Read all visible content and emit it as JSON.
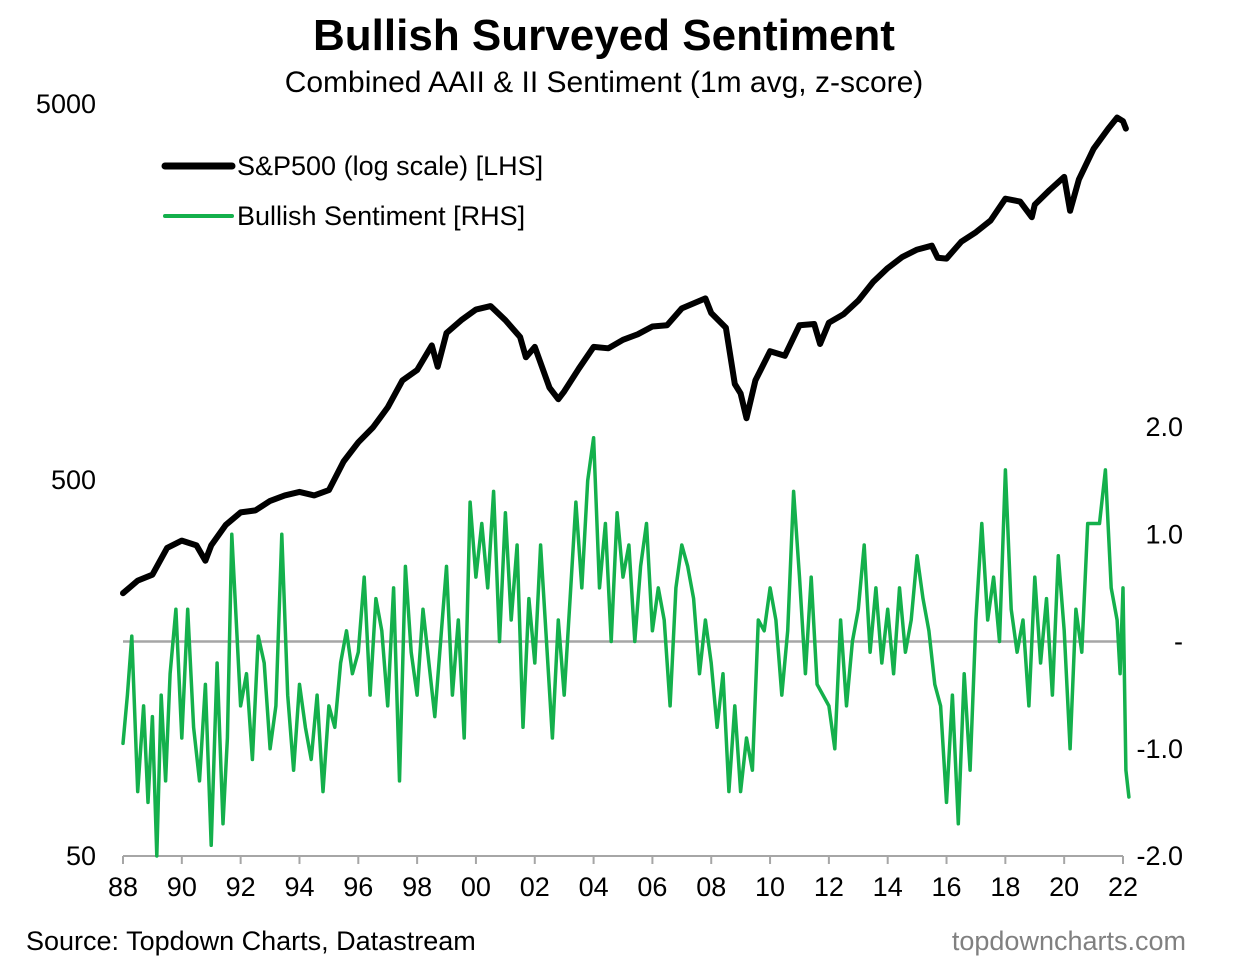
{
  "chart_data": {
    "type": "line",
    "title": "Bullish Surveyed Sentiment",
    "subtitle": "Combined AAII & II Sentiment (1m avg, z-score)",
    "x_ticks": [
      "88",
      "90",
      "92",
      "94",
      "96",
      "98",
      "00",
      "02",
      "04",
      "06",
      "08",
      "10",
      "12",
      "14",
      "16",
      "18",
      "20",
      "22"
    ],
    "x_range": [
      1988,
      2022
    ],
    "left_axis": {
      "scale": "log",
      "range": [
        50,
        5000
      ],
      "ticks": [
        "5000",
        "500",
        "50"
      ],
      "tick_values": [
        5000,
        500,
        50
      ]
    },
    "right_axis": {
      "scale": "linear",
      "range": [
        -2.0,
        2.0
      ],
      "ticks": [
        "2.0",
        "1.0",
        "-",
        "-1.0",
        "-2.0"
      ],
      "tick_values": [
        2,
        1,
        0,
        -1,
        -2
      ]
    },
    "legend": {
      "position": "top-left"
    },
    "series": [
      {
        "name": "S&P500 (log scale) [LHS]",
        "axis": "left",
        "color": "#000000",
        "points": [
          [
            1988.0,
            250
          ],
          [
            1988.5,
            270
          ],
          [
            1989.0,
            280
          ],
          [
            1989.5,
            330
          ],
          [
            1990.0,
            345
          ],
          [
            1990.5,
            335
          ],
          [
            1990.8,
            305
          ],
          [
            1991.0,
            335
          ],
          [
            1991.5,
            380
          ],
          [
            1992.0,
            410
          ],
          [
            1992.5,
            415
          ],
          [
            1993.0,
            440
          ],
          [
            1993.5,
            455
          ],
          [
            1994.0,
            465
          ],
          [
            1994.5,
            455
          ],
          [
            1995.0,
            470
          ],
          [
            1995.5,
            560
          ],
          [
            1996.0,
            630
          ],
          [
            1996.5,
            690
          ],
          [
            1997.0,
            780
          ],
          [
            1997.5,
            920
          ],
          [
            1998.0,
            980
          ],
          [
            1998.5,
            1140
          ],
          [
            1998.7,
            1000
          ],
          [
            1999.0,
            1230
          ],
          [
            1999.5,
            1330
          ],
          [
            2000.0,
            1420
          ],
          [
            2000.5,
            1450
          ],
          [
            2001.0,
            1330
          ],
          [
            2001.5,
            1200
          ],
          [
            2001.7,
            1060
          ],
          [
            2002.0,
            1130
          ],
          [
            2002.5,
            880
          ],
          [
            2002.8,
            820
          ],
          [
            2003.0,
            860
          ],
          [
            2003.5,
            990
          ],
          [
            2004.0,
            1130
          ],
          [
            2004.5,
            1120
          ],
          [
            2005.0,
            1180
          ],
          [
            2005.5,
            1220
          ],
          [
            2006.0,
            1280
          ],
          [
            2006.5,
            1290
          ],
          [
            2007.0,
            1430
          ],
          [
            2007.8,
            1520
          ],
          [
            2008.0,
            1390
          ],
          [
            2008.5,
            1270
          ],
          [
            2008.8,
            900
          ],
          [
            2009.0,
            850
          ],
          [
            2009.2,
            730
          ],
          [
            2009.5,
            920
          ],
          [
            2010.0,
            1100
          ],
          [
            2010.5,
            1070
          ],
          [
            2011.0,
            1290
          ],
          [
            2011.5,
            1300
          ],
          [
            2011.7,
            1150
          ],
          [
            2012.0,
            1310
          ],
          [
            2012.5,
            1380
          ],
          [
            2013.0,
            1500
          ],
          [
            2013.5,
            1680
          ],
          [
            2014.0,
            1830
          ],
          [
            2014.5,
            1960
          ],
          [
            2015.0,
            2050
          ],
          [
            2015.5,
            2100
          ],
          [
            2015.7,
            1950
          ],
          [
            2016.0,
            1940
          ],
          [
            2016.5,
            2150
          ],
          [
            2017.0,
            2280
          ],
          [
            2017.5,
            2450
          ],
          [
            2018.0,
            2800
          ],
          [
            2018.5,
            2750
          ],
          [
            2018.9,
            2500
          ],
          [
            2019.0,
            2700
          ],
          [
            2019.5,
            2950
          ],
          [
            2020.0,
            3200
          ],
          [
            2020.2,
            2600
          ],
          [
            2020.5,
            3150
          ],
          [
            2021.0,
            3800
          ],
          [
            2021.5,
            4300
          ],
          [
            2021.8,
            4600
          ],
          [
            2022.0,
            4500
          ],
          [
            2022.1,
            4300
          ]
        ]
      },
      {
        "name": "Bullish Sentiment [RHS]",
        "axis": "right",
        "color": "#14b04c",
        "points": [
          [
            1988.0,
            -0.95
          ],
          [
            1988.15,
            -0.5
          ],
          [
            1988.3,
            0.05
          ],
          [
            1988.5,
            -1.4
          ],
          [
            1988.7,
            -0.6
          ],
          [
            1988.85,
            -1.5
          ],
          [
            1989.0,
            -0.7
          ],
          [
            1989.15,
            -2.0
          ],
          [
            1989.3,
            -0.5
          ],
          [
            1989.45,
            -1.3
          ],
          [
            1989.6,
            -0.3
          ],
          [
            1989.8,
            0.3
          ],
          [
            1990.0,
            -0.9
          ],
          [
            1990.2,
            0.3
          ],
          [
            1990.4,
            -0.8
          ],
          [
            1990.6,
            -1.3
          ],
          [
            1990.8,
            -0.4
          ],
          [
            1991.0,
            -1.9
          ],
          [
            1991.2,
            -0.2
          ],
          [
            1991.4,
            -1.7
          ],
          [
            1991.55,
            -0.9
          ],
          [
            1991.7,
            1.0
          ],
          [
            1992.0,
            -0.6
          ],
          [
            1992.2,
            -0.3
          ],
          [
            1992.4,
            -1.1
          ],
          [
            1992.6,
            0.05
          ],
          [
            1992.8,
            -0.2
          ],
          [
            1993.0,
            -1.0
          ],
          [
            1993.2,
            -0.6
          ],
          [
            1993.4,
            1.0
          ],
          [
            1993.6,
            -0.5
          ],
          [
            1993.8,
            -1.2
          ],
          [
            1994.0,
            -0.4
          ],
          [
            1994.2,
            -0.8
          ],
          [
            1994.4,
            -1.1
          ],
          [
            1994.6,
            -0.5
          ],
          [
            1994.8,
            -1.4
          ],
          [
            1995.0,
            -0.6
          ],
          [
            1995.2,
            -0.8
          ],
          [
            1995.4,
            -0.2
          ],
          [
            1995.6,
            0.1
          ],
          [
            1995.8,
            -0.3
          ],
          [
            1996.0,
            -0.1
          ],
          [
            1996.2,
            0.6
          ],
          [
            1996.4,
            -0.5
          ],
          [
            1996.6,
            0.4
          ],
          [
            1996.8,
            0.1
          ],
          [
            1997.0,
            -0.6
          ],
          [
            1997.2,
            0.5
          ],
          [
            1997.4,
            -1.3
          ],
          [
            1997.6,
            0.7
          ],
          [
            1997.8,
            -0.1
          ],
          [
            1998.0,
            -0.5
          ],
          [
            1998.2,
            0.3
          ],
          [
            1998.4,
            -0.2
          ],
          [
            1998.6,
            -0.7
          ],
          [
            1998.8,
            0.0
          ],
          [
            1999.0,
            0.7
          ],
          [
            1999.2,
            -0.5
          ],
          [
            1999.4,
            0.2
          ],
          [
            1999.6,
            -0.9
          ],
          [
            1999.8,
            1.3
          ],
          [
            2000.0,
            0.6
          ],
          [
            2000.2,
            1.1
          ],
          [
            2000.4,
            0.5
          ],
          [
            2000.6,
            1.4
          ],
          [
            2000.8,
            0.0
          ],
          [
            2001.0,
            1.2
          ],
          [
            2001.2,
            0.2
          ],
          [
            2001.4,
            0.9
          ],
          [
            2001.6,
            -0.8
          ],
          [
            2001.8,
            0.4
          ],
          [
            2002.0,
            -0.2
          ],
          [
            2002.2,
            0.9
          ],
          [
            2002.4,
            0.0
          ],
          [
            2002.6,
            -0.9
          ],
          [
            2002.8,
            0.2
          ],
          [
            2003.0,
            -0.5
          ],
          [
            2003.2,
            0.4
          ],
          [
            2003.4,
            1.3
          ],
          [
            2003.6,
            0.5
          ],
          [
            2003.8,
            1.5
          ],
          [
            2004.0,
            1.9
          ],
          [
            2004.2,
            0.5
          ],
          [
            2004.4,
            1.1
          ],
          [
            2004.6,
            0.0
          ],
          [
            2004.8,
            1.2
          ],
          [
            2005.0,
            0.6
          ],
          [
            2005.2,
            0.9
          ],
          [
            2005.4,
            0.0
          ],
          [
            2005.6,
            0.7
          ],
          [
            2005.8,
            1.1
          ],
          [
            2006.0,
            0.1
          ],
          [
            2006.2,
            0.5
          ],
          [
            2006.4,
            0.2
          ],
          [
            2006.6,
            -0.6
          ],
          [
            2006.8,
            0.5
          ],
          [
            2007.0,
            0.9
          ],
          [
            2007.2,
            0.7
          ],
          [
            2007.4,
            0.4
          ],
          [
            2007.6,
            -0.3
          ],
          [
            2007.8,
            0.2
          ],
          [
            2008.0,
            -0.2
          ],
          [
            2008.2,
            -0.8
          ],
          [
            2008.4,
            -0.3
          ],
          [
            2008.6,
            -1.4
          ],
          [
            2008.8,
            -0.6
          ],
          [
            2009.0,
            -1.4
          ],
          [
            2009.2,
            -0.9
          ],
          [
            2009.4,
            -1.2
          ],
          [
            2009.6,
            0.2
          ],
          [
            2009.8,
            0.1
          ],
          [
            2010.0,
            0.5
          ],
          [
            2010.2,
            0.2
          ],
          [
            2010.4,
            -0.5
          ],
          [
            2010.6,
            0.1
          ],
          [
            2010.8,
            1.4
          ],
          [
            2011.0,
            0.6
          ],
          [
            2011.2,
            -0.3
          ],
          [
            2011.4,
            0.6
          ],
          [
            2011.6,
            -0.4
          ],
          [
            2011.8,
            -0.5
          ],
          [
            2012.0,
            -0.6
          ],
          [
            2012.2,
            -1.0
          ],
          [
            2012.4,
            0.2
          ],
          [
            2012.6,
            -0.6
          ],
          [
            2012.8,
            0.0
          ],
          [
            2013.0,
            0.3
          ],
          [
            2013.2,
            0.9
          ],
          [
            2013.4,
            -0.1
          ],
          [
            2013.6,
            0.5
          ],
          [
            2013.8,
            -0.2
          ],
          [
            2014.0,
            0.3
          ],
          [
            2014.2,
            -0.3
          ],
          [
            2014.4,
            0.5
          ],
          [
            2014.6,
            -0.1
          ],
          [
            2014.8,
            0.2
          ],
          [
            2015.0,
            0.8
          ],
          [
            2015.2,
            0.4
          ],
          [
            2015.4,
            0.1
          ],
          [
            2015.6,
            -0.4
          ],
          [
            2015.8,
            -0.6
          ],
          [
            2016.0,
            -1.5
          ],
          [
            2016.2,
            -0.5
          ],
          [
            2016.4,
            -1.7
          ],
          [
            2016.6,
            -0.3
          ],
          [
            2016.8,
            -1.2
          ],
          [
            2017.0,
            0.2
          ],
          [
            2017.2,
            1.1
          ],
          [
            2017.4,
            0.2
          ],
          [
            2017.6,
            0.6
          ],
          [
            2017.8,
            0.0
          ],
          [
            2018.0,
            1.6
          ],
          [
            2018.2,
            0.3
          ],
          [
            2018.4,
            -0.1
          ],
          [
            2018.6,
            0.2
          ],
          [
            2018.8,
            -0.6
          ],
          [
            2019.0,
            0.6
          ],
          [
            2019.2,
            -0.2
          ],
          [
            2019.4,
            0.4
          ],
          [
            2019.6,
            -0.5
          ],
          [
            2019.8,
            0.8
          ],
          [
            2020.0,
            0.1
          ],
          [
            2020.2,
            -1.0
          ],
          [
            2020.4,
            0.3
          ],
          [
            2020.6,
            -0.1
          ],
          [
            2020.8,
            1.1
          ],
          [
            2021.0,
            1.1
          ],
          [
            2021.2,
            1.1
          ],
          [
            2021.4,
            1.6
          ],
          [
            2021.6,
            0.5
          ],
          [
            2021.8,
            0.2
          ],
          [
            2021.9,
            -0.3
          ],
          [
            2022.0,
            0.5
          ],
          [
            2022.1,
            -1.2
          ],
          [
            2022.2,
            -1.45
          ]
        ]
      }
    ]
  },
  "footer": {
    "source": "Source: Topdown Charts, Datastream",
    "credit": "topdowncharts.com"
  }
}
